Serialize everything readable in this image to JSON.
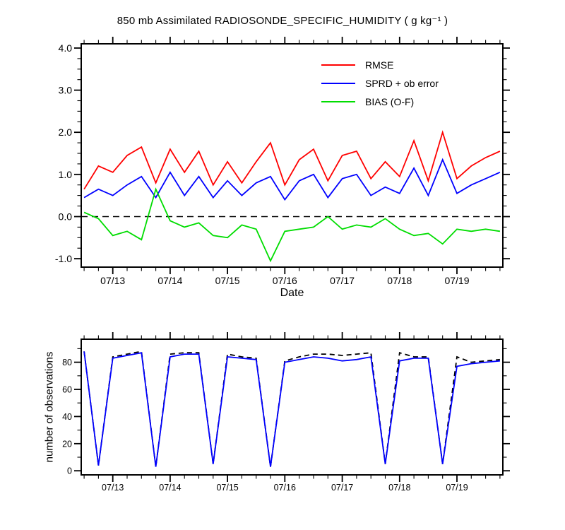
{
  "chart_data": [
    {
      "type": "line",
      "title": "850 mb Assimilated RADIOSONDE_SPECIFIC_HUMIDITY ( g kg⁻¹ )",
      "xlabel": "Date",
      "ylabel": "",
      "xlim": [
        12.45,
        19.8
      ],
      "ylim": [
        -1.2,
        4.1
      ],
      "xticks": [
        13,
        14,
        15,
        16,
        17,
        18,
        19
      ],
      "xtick_labels": [
        "07/13",
        "07/14",
        "07/15",
        "07/16",
        "07/17",
        "07/18",
        "07/19"
      ],
      "yticks": [
        -1.0,
        0.0,
        1.0,
        2.0,
        3.0,
        4.0
      ],
      "ytick_labels": [
        "-1.0",
        "0.0",
        "1.0",
        "2.0",
        "3.0",
        "4.0"
      ],
      "x_minor_step": 0.25,
      "y_minor_step": 0.25,
      "y_major_step": 1.0,
      "grid": false,
      "reference_line_y": 0.0,
      "legend_position": "upper-right-inside",
      "x": [
        12.5,
        12.75,
        13.0,
        13.25,
        13.5,
        13.75,
        14.0,
        14.25,
        14.5,
        14.75,
        15.0,
        15.25,
        15.5,
        15.75,
        16.0,
        16.25,
        16.5,
        16.75,
        17.0,
        17.25,
        17.5,
        17.75,
        18.0,
        18.25,
        18.5,
        18.75,
        19.0,
        19.25,
        19.5,
        19.75
      ],
      "series": [
        {
          "name": "RMSE",
          "color": "#ff0000",
          "dash": "",
          "values": [
            0.65,
            1.2,
            1.05,
            1.45,
            1.65,
            0.8,
            1.6,
            1.05,
            1.55,
            0.75,
            1.3,
            0.8,
            1.3,
            1.75,
            0.75,
            1.35,
            1.6,
            0.85,
            1.45,
            1.55,
            0.9,
            1.3,
            0.95,
            1.8,
            0.85,
            2.0,
            0.9,
            1.2,
            1.4,
            1.55
          ]
        },
        {
          "name": "SPRD + ob error",
          "color": "#0000ff",
          "dash": "",
          "values": [
            0.45,
            0.65,
            0.5,
            0.75,
            0.95,
            0.45,
            1.05,
            0.5,
            0.95,
            0.45,
            0.85,
            0.5,
            0.8,
            0.95,
            0.4,
            0.85,
            1.0,
            0.45,
            0.9,
            1.0,
            0.5,
            0.7,
            0.55,
            1.15,
            0.5,
            1.35,
            0.55,
            0.75,
            0.9,
            1.05
          ]
        },
        {
          "name": "BIAS (O-F)",
          "color": "#00dd00",
          "dash": "",
          "values": [
            0.1,
            -0.05,
            -0.45,
            -0.35,
            -0.55,
            0.65,
            -0.1,
            -0.25,
            -0.15,
            -0.45,
            -0.5,
            -0.2,
            -0.3,
            -1.05,
            -0.35,
            -0.3,
            -0.25,
            0.0,
            -0.3,
            -0.2,
            -0.25,
            -0.05,
            -0.3,
            -0.45,
            -0.4,
            -0.65,
            -0.3,
            -0.35,
            -0.3,
            -0.35
          ]
        }
      ]
    },
    {
      "type": "line",
      "title": "",
      "xlabel": "",
      "ylabel": "number of observations",
      "xlim": [
        12.45,
        19.8
      ],
      "ylim": [
        -3,
        97
      ],
      "xticks": [
        13,
        14,
        15,
        16,
        17,
        18,
        19
      ],
      "xtick_labels": [
        "07/13",
        "07/14",
        "07/15",
        "07/16",
        "07/17",
        "07/18",
        "07/19"
      ],
      "yticks": [
        0,
        20,
        40,
        60,
        80
      ],
      "ytick_labels": [
        "0",
        "20",
        "40",
        "60",
        "80"
      ],
      "x_minor_step": 0.25,
      "y_minor_step": 10,
      "y_major_step": 20,
      "grid": false,
      "reference_line_y": null,
      "legend_position": "none",
      "x": [
        12.5,
        12.75,
        13.0,
        13.25,
        13.5,
        13.75,
        14.0,
        14.25,
        14.5,
        14.75,
        15.0,
        15.25,
        15.5,
        15.75,
        16.0,
        16.25,
        16.5,
        16.75,
        17.0,
        17.25,
        17.5,
        17.75,
        18.0,
        18.25,
        18.5,
        18.75,
        19.0,
        19.25,
        19.5,
        19.75
      ],
      "series": [
        {
          "name": "black_dashed",
          "color": "#000000",
          "dash": "7 5",
          "values": [
            88,
            4,
            84,
            86,
            88,
            3,
            86,
            87,
            87,
            5,
            86,
            84,
            83,
            3,
            81,
            84,
            86,
            86,
            85,
            86,
            87,
            5,
            87,
            84,
            84,
            5,
            84,
            80,
            81,
            82
          ]
        },
        {
          "name": "blue_solid",
          "color": "#0000ff",
          "dash": "",
          "values": [
            88,
            4,
            83,
            85,
            87,
            3,
            84,
            86,
            86,
            5,
            84,
            83,
            82,
            3,
            80,
            82,
            84,
            83,
            81,
            82,
            84,
            5,
            81,
            83,
            83,
            5,
            77,
            79,
            80,
            81
          ]
        }
      ]
    }
  ]
}
